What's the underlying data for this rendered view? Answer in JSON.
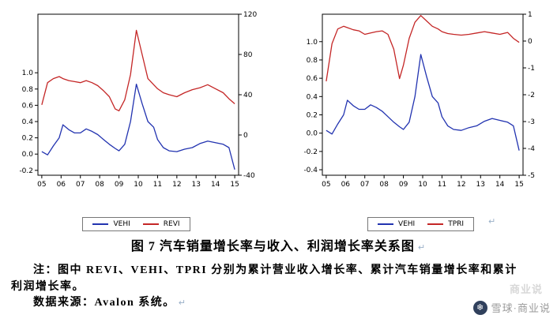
{
  "figure_caption": {
    "title": "图 7 汽车销量增长率与收入、利润增长率关系图",
    "note_line1": "注：图中 REVI、VEHI、TPRI 分别为累计营业收入增长率、累计汽车销量增长率和累计",
    "note_line2": "利润增长率。",
    "source": "数据来源：Avalon 系统。"
  },
  "branding": {
    "faint_watermark": "商业说",
    "brand_name": "雪球·商业说",
    "logo_glyph": "❄"
  },
  "marks": {
    "line_break": "↵"
  },
  "colors": {
    "vehi_blue": "#2233b0",
    "revi_red": "#c42626",
    "tpri_red": "#c42626",
    "axis_black": "#000000",
    "watermark_gray": "#d8d8d8",
    "brand_gray": "#9a9a9a",
    "break_mark_blue": "#9ab0c8"
  },
  "chart_data": [
    {
      "type": "line",
      "title": "",
      "x_ticks": [
        "05",
        "06",
        "07",
        "08",
        "09",
        "10",
        "11",
        "12",
        "13",
        "14",
        "15"
      ],
      "x_range": [
        2004.8,
        2015.2
      ],
      "left_axis": {
        "range": [
          -0.26,
          1.72
        ],
        "ticks": [
          "1.0",
          "0.8",
          "0.6",
          "0.4",
          "0.2",
          "0.0",
          "-0.2"
        ]
      },
      "right_axis": {
        "range": [
          -40,
          120
        ],
        "ticks": [
          "120",
          "80",
          "40",
          "0",
          "-40"
        ]
      },
      "x": [
        2005.0,
        2005.3,
        2005.6,
        2005.9,
        2006.1,
        2006.4,
        2006.7,
        2007.0,
        2007.3,
        2007.6,
        2007.9,
        2008.2,
        2008.5,
        2008.8,
        2009.0,
        2009.3,
        2009.6,
        2009.9,
        2010.2,
        2010.5,
        2010.8,
        2011.0,
        2011.3,
        2011.6,
        2012.0,
        2012.4,
        2012.8,
        2013.2,
        2013.6,
        2014.0,
        2014.4,
        2014.7,
        2015.0
      ],
      "series": [
        {
          "name": "VEHI",
          "axis": "left",
          "color": "#2233b0",
          "values": [
            0.03,
            -0.01,
            0.1,
            0.2,
            0.36,
            0.3,
            0.26,
            0.26,
            0.31,
            0.28,
            0.24,
            0.18,
            0.12,
            0.07,
            0.04,
            0.12,
            0.4,
            0.86,
            0.62,
            0.4,
            0.33,
            0.18,
            0.08,
            0.04,
            0.03,
            0.06,
            0.08,
            0.13,
            0.16,
            0.14,
            0.12,
            0.08,
            -0.19
          ]
        },
        {
          "name": "REVI",
          "axis": "right",
          "color": "#c42626",
          "values": [
            30,
            52,
            56,
            58,
            56,
            54,
            53,
            52,
            54,
            52,
            49,
            44,
            38,
            26,
            24,
            35,
            60,
            104,
            80,
            56,
            50,
            46,
            42,
            40,
            38,
            42,
            45,
            47,
            50,
            46,
            42,
            36,
            31
          ]
        }
      ],
      "legend": [
        "VEHI",
        "REVI"
      ],
      "legend_position": "bottom",
      "grid": false
    },
    {
      "type": "line",
      "title": "",
      "x_ticks": [
        "05",
        "06",
        "07",
        "08",
        "09",
        "10",
        "11",
        "12",
        "13",
        "14",
        "15"
      ],
      "x_range": [
        2004.8,
        2015.2
      ],
      "left_axis": {
        "range": [
          -0.46,
          1.3
        ],
        "ticks": [
          "1.0",
          "0.8",
          "0.6",
          "0.4",
          "0.2",
          "0.0",
          "-0.2",
          "-0.4"
        ]
      },
      "right_axis": {
        "range": [
          -5,
          1
        ],
        "ticks": [
          "1",
          "0",
          "-1",
          "-2",
          "-3",
          "-4",
          "-5"
        ]
      },
      "x": [
        2005.0,
        2005.3,
        2005.6,
        2005.9,
        2006.1,
        2006.4,
        2006.7,
        2007.0,
        2007.3,
        2007.6,
        2007.9,
        2008.2,
        2008.5,
        2008.8,
        2009.0,
        2009.3,
        2009.6,
        2009.9,
        2010.2,
        2010.5,
        2010.8,
        2011.0,
        2011.3,
        2011.6,
        2012.0,
        2012.4,
        2012.8,
        2013.2,
        2013.6,
        2014.0,
        2014.4,
        2014.7,
        2015.0
      ],
      "series": [
        {
          "name": "VEHI",
          "axis": "left",
          "color": "#2233b0",
          "values": [
            0.03,
            -0.01,
            0.1,
            0.2,
            0.36,
            0.3,
            0.26,
            0.26,
            0.31,
            0.28,
            0.24,
            0.18,
            0.12,
            0.07,
            0.04,
            0.12,
            0.4,
            0.86,
            0.62,
            0.4,
            0.33,
            0.18,
            0.08,
            0.04,
            0.03,
            0.06,
            0.08,
            0.13,
            0.16,
            0.14,
            0.12,
            0.08,
            -0.19
          ]
        },
        {
          "name": "TPRI",
          "axis": "right",
          "color": "#c42626",
          "values": [
            -1.5,
            -0.1,
            0.45,
            0.55,
            0.5,
            0.42,
            0.38,
            0.25,
            0.3,
            0.35,
            0.38,
            0.25,
            -0.3,
            -1.4,
            -0.9,
            0.1,
            0.7,
            0.95,
            0.75,
            0.55,
            0.45,
            0.35,
            0.28,
            0.25,
            0.22,
            0.25,
            0.3,
            0.35,
            0.3,
            0.25,
            0.32,
            0.1,
            -0.05
          ]
        }
      ],
      "legend": [
        "VEHI",
        "TPRI"
      ],
      "legend_position": "bottom",
      "grid": false
    }
  ]
}
